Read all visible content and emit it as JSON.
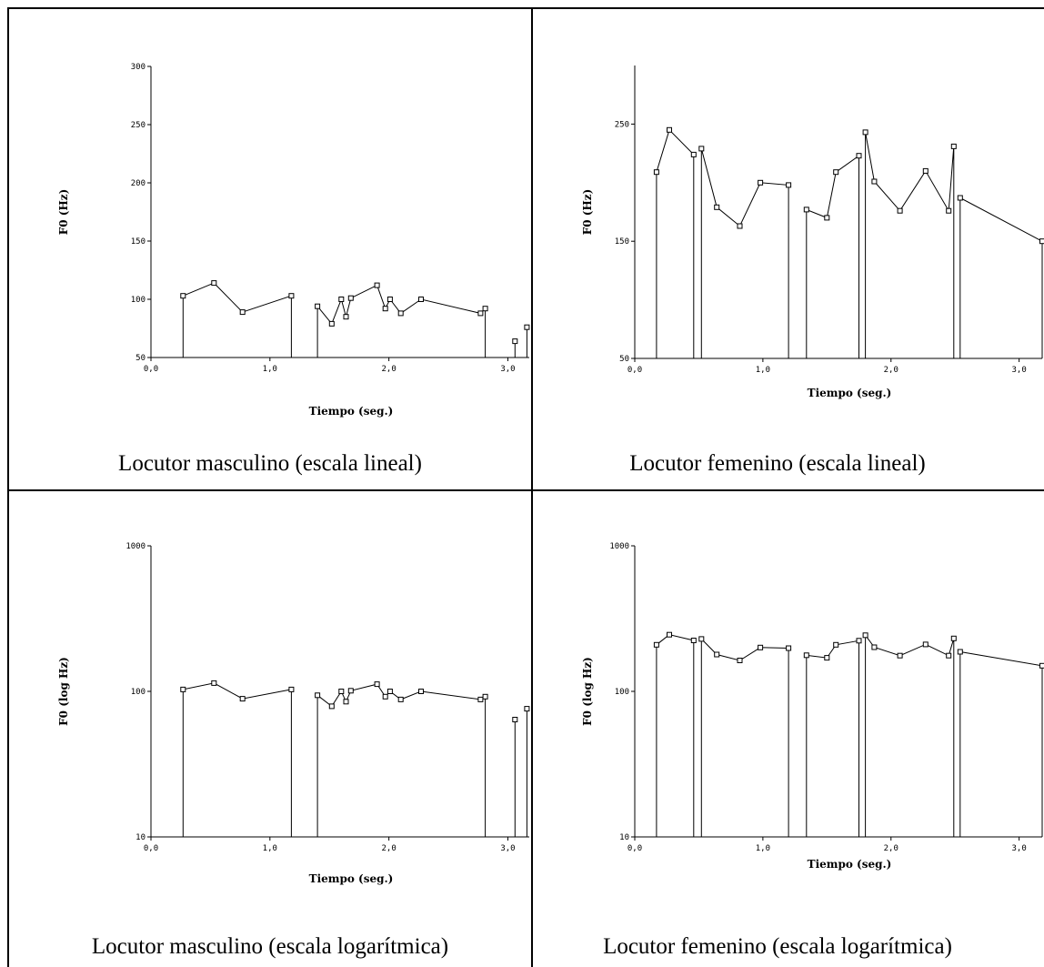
{
  "chart_data": [
    {
      "type": "line",
      "ylabel": "F0 (Hz)",
      "xlabel": "Tiempo (seg.)",
      "caption": "Locutor masculino (escala lineal)",
      "yscale": "linear",
      "ylim": [
        50,
        300
      ],
      "yticks": [
        "50",
        "100",
        "150",
        "200",
        "250",
        "300"
      ],
      "ytick_values": [
        50,
        100,
        150,
        200,
        250,
        300
      ],
      "xlim": [
        0,
        3.18
      ],
      "xticks": [
        "0,0",
        "1,0",
        "2,0",
        "3,0"
      ],
      "xtick_values": [
        0,
        1,
        2,
        3
      ],
      "segments": [
        [
          [
            0.27,
            103
          ],
          [
            0.53,
            114
          ],
          [
            0.77,
            89
          ],
          [
            1.18,
            103
          ]
        ],
        [
          [
            1.4,
            94
          ],
          [
            1.52,
            79
          ],
          [
            1.6,
            100
          ],
          [
            1.64,
            85
          ],
          [
            1.68,
            101
          ],
          [
            1.9,
            112
          ],
          [
            1.97,
            92
          ],
          [
            2.01,
            100
          ],
          [
            2.1,
            88
          ],
          [
            2.27,
            100
          ],
          [
            2.77,
            88
          ],
          [
            2.81,
            92
          ]
        ],
        [
          [
            3.06,
            64
          ]
        ],
        [
          [
            3.16,
            76
          ]
        ]
      ]
    },
    {
      "type": "line",
      "ylabel": "F0 (Hz)",
      "xlabel": "Tiempo (seg.)",
      "caption": "Locutor femenino (escala lineal)",
      "yscale": "linear",
      "ylim": [
        50,
        300
      ],
      "yticks": [
        "50",
        "150",
        "250"
      ],
      "ytick_values": [
        50,
        150,
        250
      ],
      "xlim": [
        0,
        3.18
      ],
      "xticks": [
        "0,0",
        "1,0",
        "2,0",
        "3,0"
      ],
      "xtick_values": [
        0,
        1,
        2,
        3
      ],
      "segments": [
        [
          [
            0.17,
            209
          ],
          [
            0.27,
            245
          ],
          [
            0.46,
            224
          ]
        ],
        [
          [
            0.52,
            229
          ],
          [
            0.64,
            179
          ],
          [
            0.82,
            163
          ],
          [
            0.98,
            200
          ],
          [
            1.2,
            198
          ]
        ],
        [
          [
            1.34,
            177
          ],
          [
            1.5,
            170
          ],
          [
            1.57,
            209
          ],
          [
            1.75,
            223
          ]
        ],
        [
          [
            1.8,
            243
          ],
          [
            1.87,
            201
          ],
          [
            2.07,
            176
          ],
          [
            2.27,
            210
          ],
          [
            2.45,
            176
          ],
          [
            2.49,
            231
          ]
        ],
        [
          [
            2.54,
            187
          ],
          [
            3.18,
            150
          ]
        ]
      ]
    },
    {
      "type": "line",
      "ylabel": "F0 (log Hz)",
      "xlabel": "Tiempo (seg.)",
      "caption": "Locutor masculino (escala logarítmica)",
      "yscale": "log",
      "ylim": [
        10,
        1000
      ],
      "yticks": [
        "10",
        "100",
        "1000"
      ],
      "ytick_values": [
        10,
        100,
        1000
      ],
      "xlim": [
        0,
        3.18
      ],
      "xticks": [
        "0,0",
        "1,0",
        "2,0",
        "3,0"
      ],
      "xtick_values": [
        0,
        1,
        2,
        3
      ],
      "segments": [
        [
          [
            0.27,
            103
          ],
          [
            0.53,
            114
          ],
          [
            0.77,
            89
          ],
          [
            1.18,
            103
          ]
        ],
        [
          [
            1.4,
            94
          ],
          [
            1.52,
            79
          ],
          [
            1.6,
            100
          ],
          [
            1.64,
            85
          ],
          [
            1.68,
            101
          ],
          [
            1.9,
            112
          ],
          [
            1.97,
            92
          ],
          [
            2.01,
            100
          ],
          [
            2.1,
            88
          ],
          [
            2.27,
            100
          ],
          [
            2.77,
            88
          ],
          [
            2.81,
            92
          ]
        ],
        [
          [
            3.06,
            64
          ]
        ],
        [
          [
            3.16,
            76
          ]
        ]
      ]
    },
    {
      "type": "line",
      "ylabel": "F0 (log Hz)",
      "xlabel": "Tiempo (seg.)",
      "caption": "Locutor femenino (escala logarítmica)",
      "yscale": "log",
      "ylim": [
        10,
        1000
      ],
      "yticks": [
        "10",
        "100",
        "1000"
      ],
      "ytick_values": [
        10,
        100,
        1000
      ],
      "xlim": [
        0,
        3.18
      ],
      "xticks": [
        "0,0",
        "1,0",
        "2,0",
        "3,0"
      ],
      "xtick_values": [
        0,
        1,
        2,
        3
      ],
      "segments": [
        [
          [
            0.17,
            209
          ],
          [
            0.27,
            245
          ],
          [
            0.46,
            224
          ]
        ],
        [
          [
            0.52,
            229
          ],
          [
            0.64,
            179
          ],
          [
            0.82,
            163
          ],
          [
            0.98,
            200
          ],
          [
            1.2,
            198
          ]
        ],
        [
          [
            1.34,
            177
          ],
          [
            1.5,
            170
          ],
          [
            1.57,
            209
          ],
          [
            1.75,
            223
          ]
        ],
        [
          [
            1.8,
            243
          ],
          [
            1.87,
            201
          ],
          [
            2.07,
            176
          ],
          [
            2.27,
            210
          ],
          [
            2.45,
            176
          ],
          [
            2.49,
            231
          ]
        ],
        [
          [
            2.54,
            187
          ],
          [
            3.18,
            150
          ]
        ]
      ]
    }
  ]
}
